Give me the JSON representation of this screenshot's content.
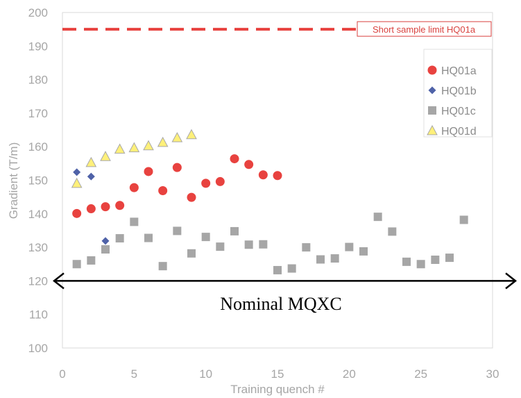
{
  "chart_data": {
    "type": "scatter",
    "title": "",
    "xlabel": "Training quench #",
    "ylabel": "Gradient (T/m)",
    "xlim": [
      0,
      30
    ],
    "ylim": [
      100,
      200
    ],
    "xticks": [
      0,
      5,
      10,
      15,
      20,
      25,
      30
    ],
    "yticks": [
      100,
      110,
      120,
      130,
      140,
      150,
      160,
      170,
      180,
      190,
      200
    ],
    "grid": false,
    "legend_position": "top-right",
    "series": [
      {
        "name": "HQ01a",
        "marker": "circle",
        "color": "#e8423f",
        "x": [
          1,
          2,
          3,
          4,
          5,
          6,
          7,
          8,
          9,
          10,
          11,
          12,
          13,
          14,
          15
        ],
        "y": [
          140.1,
          141.5,
          142.1,
          142.5,
          147.8,
          152.6,
          146.9,
          153.8,
          144.9,
          149.1,
          149.6,
          156.4,
          154.7,
          151.6,
          151.4
        ]
      },
      {
        "name": "HQ01b",
        "marker": "diamond",
        "color": "#4f62a8",
        "x": [
          1,
          2,
          3
        ],
        "y": [
          152.4,
          151.1,
          131.9
        ]
      },
      {
        "name": "HQ01c",
        "marker": "square",
        "color": "#a6a6a6",
        "x": [
          1,
          2,
          3,
          4,
          5,
          6,
          7,
          8,
          9,
          10,
          11,
          12,
          13,
          14,
          15,
          16,
          17,
          18,
          19,
          20,
          21,
          22,
          23,
          24,
          25,
          26,
          27,
          28
        ],
        "y": [
          125.0,
          126.1,
          129.4,
          132.7,
          137.6,
          132.8,
          124.4,
          134.9,
          128.2,
          133.1,
          130.2,
          134.8,
          130.8,
          130.9,
          123.2,
          123.7,
          130.0,
          126.4,
          126.7,
          130.1,
          128.8,
          139.1,
          134.7,
          125.7,
          125.0,
          126.3,
          126.9,
          138.2
        ]
      },
      {
        "name": "HQ01d",
        "marker": "triangle",
        "color": "#fff07a",
        "stroke": "#a8a8a8",
        "x": [
          1,
          2,
          3,
          4,
          5,
          6,
          7,
          8,
          9
        ],
        "y": [
          149.1,
          155.3,
          157.1,
          159.3,
          159.7,
          160.3,
          161.3,
          162.7,
          163.6
        ]
      }
    ],
    "reference_lines": [
      {
        "label": "Short sample limit HQ01a",
        "y": 195,
        "style": "dashed",
        "color": "#e8423f"
      },
      {
        "label": "Nominal MQXC",
        "y": 120,
        "style": "double-arrow",
        "color": "#000000"
      }
    ]
  }
}
